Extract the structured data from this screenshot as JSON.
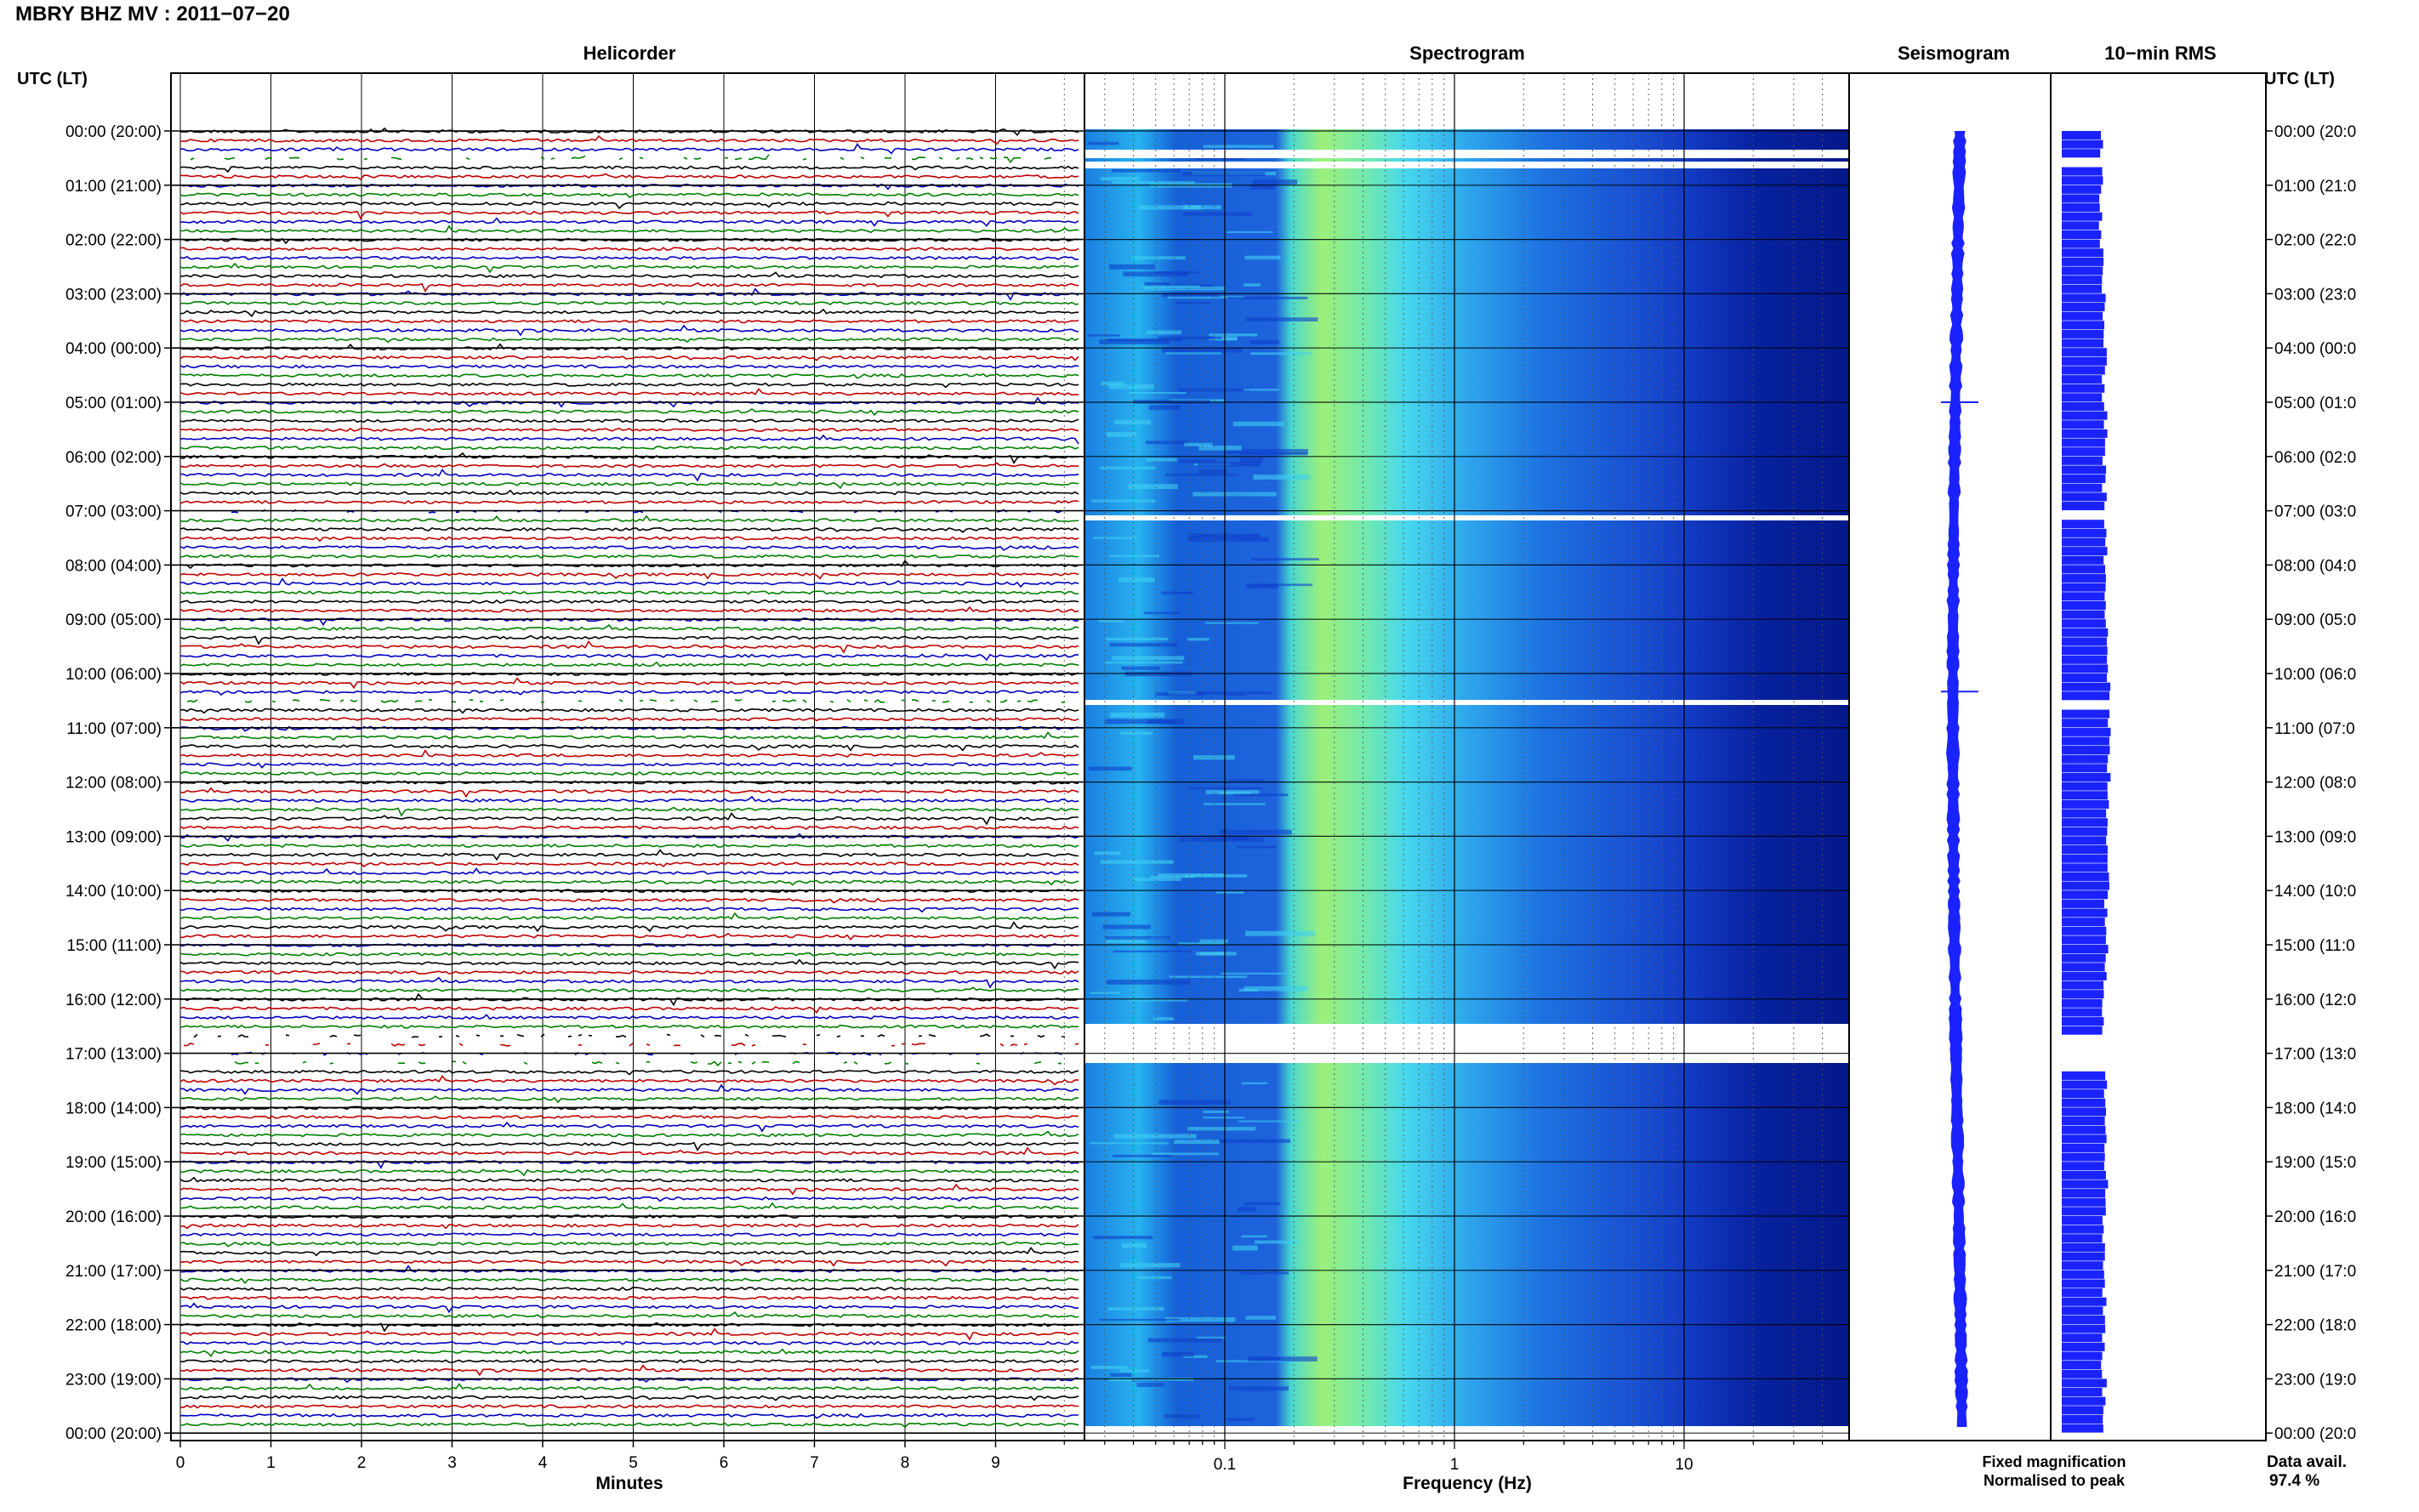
{
  "figure": {
    "title": "MBRY BHZ MV : 2011−07−20",
    "left_axis_header": "UTC (LT)",
    "right_axis_header": "UTC (LT)"
  },
  "panels": {
    "helicorder": "Helicorder",
    "spectrogram": "Spectrogram",
    "seismogram": "Seismogram",
    "rms": "10−min RMS"
  },
  "axes": {
    "helicorder_xlabel": "Minutes",
    "spectrogram_xlabel": "Frequency (Hz)",
    "minute_ticks": [
      "0",
      "1",
      "2",
      "3",
      "4",
      "5",
      "6",
      "7",
      "8",
      "9"
    ],
    "frequency_ticks": [
      "0.1",
      "1",
      "10"
    ],
    "hour_ticks": [
      "00:00 (20:00)",
      "01:00 (21:00)",
      "02:00 (22:00)",
      "03:00 (23:00)",
      "04:00 (00:00)",
      "05:00 (01:00)",
      "06:00 (02:00)",
      "07:00 (03:00)",
      "08:00 (04:00)",
      "09:00 (05:00)",
      "10:00 (06:00)",
      "11:00 (07:00)",
      "12:00 (08:00)",
      "13:00 (09:00)",
      "14:00 (10:00)",
      "15:00 (11:00)",
      "16:00 (12:00)",
      "17:00 (13:00)",
      "18:00 (14:00)",
      "19:00 (15:00)",
      "20:00 (16:00)",
      "21:00 (17:00)",
      "22:00 (18:00)",
      "23:00 (19:00)",
      "00:00 (20:00)"
    ],
    "hour_ticks_right_visible": [
      "00:00 (20:0",
      "01:00 (21:0",
      "02:00 (22:0",
      "03:00 (23:0",
      "04:00 (00:0",
      "05:00 (01:0",
      "06:00 (02:0",
      "07:00 (03:0",
      "08:00 (04:0",
      "09:00 (05:0",
      "10:00 (06:0",
      "11:00 (07:0",
      "12:00 (08:0",
      "13:00 (09:0",
      "14:00 (10:0",
      "15:00 (11:0",
      "16:00 (12:0",
      "17:00 (13:0",
      "18:00 (14:0",
      "19:00 (15:0",
      "20:00 (16:0",
      "21:00 (17:0",
      "22:00 (18:0",
      "23:00 (19:0",
      "00:00 (20:0"
    ]
  },
  "legend": {
    "fixed": "Fixed magnification",
    "normalised": "Normalised to peak",
    "fixed_color": "#1010ff",
    "normalised_color": "#e01010"
  },
  "availability": {
    "label": "Data avail.",
    "value": "97.4 %"
  },
  "chart_data": {
    "type": "heatmap",
    "panels": [
      "Helicorder",
      "Spectrogram",
      "Seismogram",
      "10−min RMS"
    ],
    "time_axis": "UTC hours 00:00 to 24:00, one trace per 10 minutes (144 traces)",
    "helicorder_trace_colors": [
      "#000000",
      "#c00000",
      "#0000c0",
      "#008000"
    ],
    "helicorder_x_range_minutes": [
      0,
      10
    ],
    "spectrogram_frequency_range_hz": [
      0.02,
      50
    ],
    "spectrogram_log_scale": true,
    "spectrogram_peak_band_hz": [
      0.2,
      0.5
    ],
    "data_gaps_utc": [
      [
        "00:30",
        "00:40"
      ],
      [
        "07:00",
        "07:10"
      ],
      [
        "10:30",
        "10:40"
      ],
      [
        "16:40",
        "17:20"
      ]
    ],
    "seismogram_events_utc": [
      "05:00",
      "10:20"
    ],
    "rms_level_relative": [
      0.48,
      0.45,
      0.47,
      0.5,
      0.5,
      0.52,
      0.5,
      0.51,
      0.53,
      0.54,
      0.55,
      0.55,
      0.54,
      0.55,
      0.53,
      0.52,
      0.5,
      0.52,
      0.53,
      0.52,
      0.5,
      0.5,
      0.49,
      0.5
    ],
    "data_availability_percent": 97.4,
    "grid": true
  }
}
